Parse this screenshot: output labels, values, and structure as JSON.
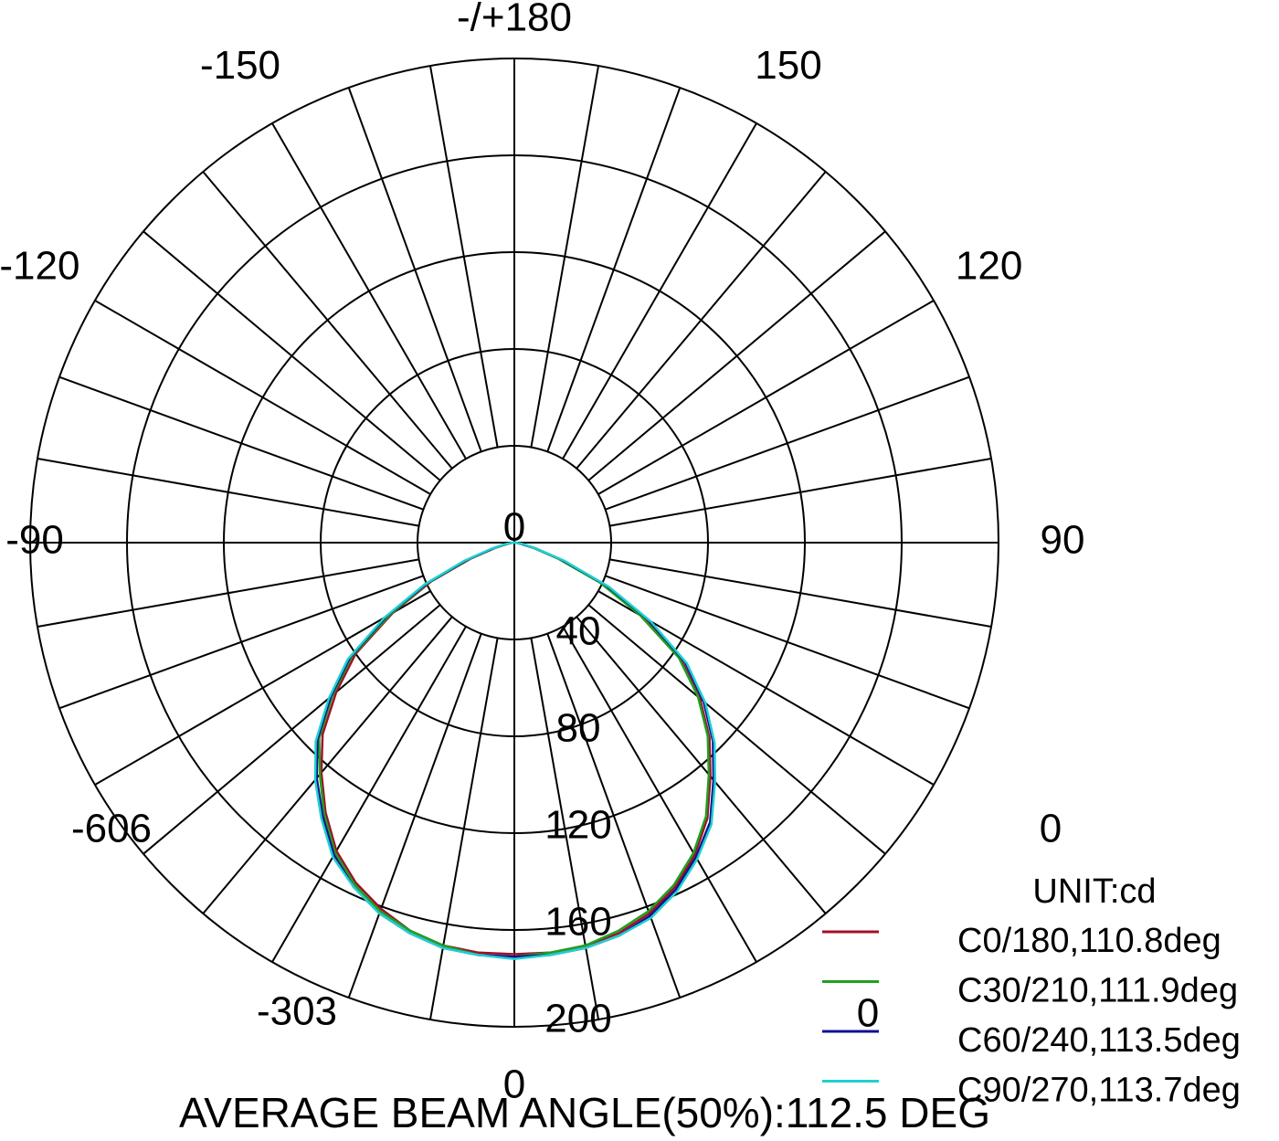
{
  "chart_data": {
    "type": "polar",
    "title": "AVERAGE BEAM ANGLE(50%):112.5 DEG",
    "unit_label": "UNIT:cd",
    "x": [
      -90,
      -85,
      -80,
      -75,
      -70,
      -65,
      -60,
      -55,
      -50,
      -45,
      -40,
      -35,
      -30,
      -25,
      -20,
      -15,
      -10,
      -5,
      0,
      5,
      10,
      15,
      20,
      25,
      30,
      35,
      40,
      45,
      50,
      55,
      60,
      65,
      70,
      75,
      80,
      85,
      90
    ],
    "series": [
      {
        "name": "C0/180,110.8deg",
        "color": "#a01028",
        "values": [
          0,
          1,
          3,
          8,
          19,
          38,
          58,
          80,
          96,
          112,
          124,
          136,
          147,
          155,
          161,
          166,
          169,
          170,
          170,
          170,
          169,
          167,
          163,
          157,
          149,
          139,
          126,
          114,
          100,
          84,
          62,
          40,
          20,
          8,
          3,
          1,
          0
        ]
      },
      {
        "name": "C30/210,111.9deg",
        "color": "#20a020",
        "values": [
          0,
          1,
          3,
          9,
          20,
          39,
          59,
          82,
          98,
          114,
          125,
          137,
          148,
          156,
          162,
          166,
          169,
          171,
          171,
          170,
          169,
          166,
          162,
          156,
          148,
          138,
          125,
          113,
          99,
          83,
          60,
          39,
          19,
          8,
          3,
          1,
          0
        ]
      },
      {
        "name": "C60/240,113.5deg",
        "color": "#101090",
        "values": [
          0,
          1,
          4,
          9,
          21,
          40,
          61,
          83,
          99,
          115,
          127,
          138,
          149,
          157,
          163,
          167,
          170,
          171,
          171,
          171,
          170,
          168,
          164,
          158,
          150,
          141,
          128,
          116,
          102,
          86,
          64,
          42,
          21,
          9,
          3,
          1,
          0
        ]
      },
      {
        "name": "C90/270,113.7deg",
        "color": "#20d0d0",
        "values": [
          0,
          1,
          4,
          10,
          22,
          41,
          62,
          84,
          100,
          116,
          128,
          139,
          150,
          157,
          163,
          167,
          170,
          171,
          172,
          171,
          170,
          168,
          165,
          159,
          151,
          142,
          129,
          117,
          103,
          87,
          65,
          43,
          22,
          9,
          4,
          1,
          0
        ]
      }
    ],
    "rlim": [
      0,
      200
    ],
    "rticks": [
      0,
      40,
      80,
      120,
      160,
      200
    ],
    "angle_ticks": [
      {
        "value": 180,
        "label": "-/+180"
      },
      150,
      120,
      90,
      0,
      -90,
      -120,
      -150
    ],
    "annotations": [
      "-606",
      "-303",
      "0",
      "0"
    ]
  }
}
